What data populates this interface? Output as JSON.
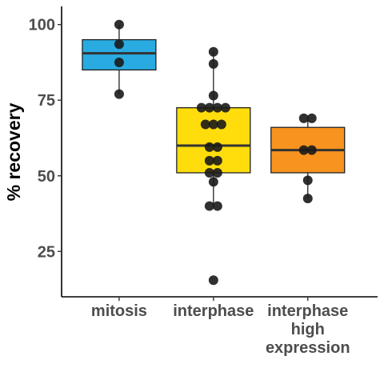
{
  "chart_data": {
    "type": "box",
    "title": "",
    "xlabel": "",
    "ylabel": "% recovery",
    "ylim": [
      10,
      106
    ],
    "yticks": [
      25,
      50,
      75,
      100
    ],
    "grid": false,
    "legend": "none",
    "categories": [
      {
        "label_lines": [
          "mitosis"
        ],
        "color": "#29abe2",
        "box": {
          "q1": 85,
          "median": 90.5,
          "q3": 95,
          "whisker_low": 77,
          "whisker_high": 100
        },
        "points": [
          100,
          93.5,
          87.5,
          77
        ]
      },
      {
        "label_lines": [
          "interphase"
        ],
        "color": "#ffdd0c",
        "box": {
          "q1": 51,
          "median": 60,
          "q3": 72.5,
          "whisker_low": 40,
          "whisker_high": 91
        },
        "points": [
          91,
          87,
          76.5,
          72.5,
          72.5,
          72.5,
          72.5,
          67,
          67,
          67,
          59.5,
          59.5,
          55,
          55,
          51,
          51,
          48,
          40,
          40,
          15.5
        ]
      },
      {
        "label_lines": [
          "interphase",
          "high",
          "expression"
        ],
        "color": "#f7931e",
        "box": {
          "q1": 51,
          "median": 58.5,
          "q3": 66,
          "whisker_low": 42.5,
          "whisker_high": 69
        },
        "points": [
          69,
          69,
          58.5,
          58.5,
          48.5,
          42.5
        ]
      }
    ],
    "point_color": "#1a1a1a"
  }
}
